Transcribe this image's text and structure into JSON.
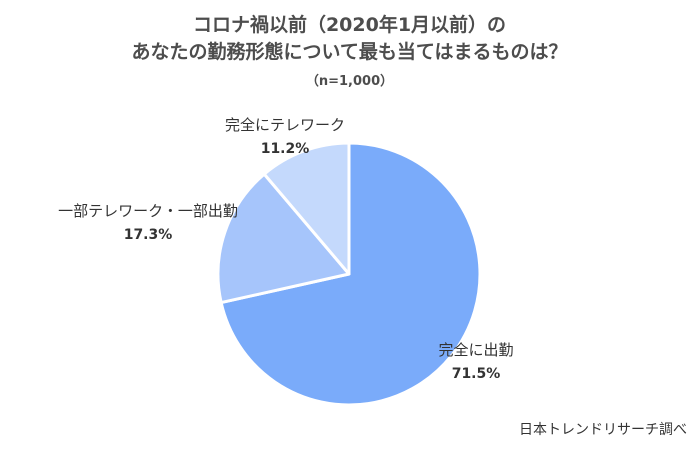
{
  "chart_data": {
    "type": "pie",
    "title_line1": "コロナ禍以前（2020年1月以前）の",
    "title_line2": "あなたの勤務形態について最も当てはまるものは？",
    "subtitle": "（n=1,000）",
    "slices": [
      {
        "label": "完全に出勤",
        "value": 71.5,
        "value_text": "71.5%",
        "color": "#7aabfa"
      },
      {
        "label": "一部テレワーク・一部出勤",
        "value": 17.3,
        "value_text": "17.3%",
        "color": "#a6c5fb"
      },
      {
        "label": "完全にテレワーク",
        "value": 11.2,
        "value_text": "11.2%",
        "color": "#c4d9fc"
      }
    ],
    "start_angle": "12 o'clock",
    "direction": "clockwise",
    "labels_outside": true,
    "source": "日本トレンドリサーチ調べ"
  }
}
